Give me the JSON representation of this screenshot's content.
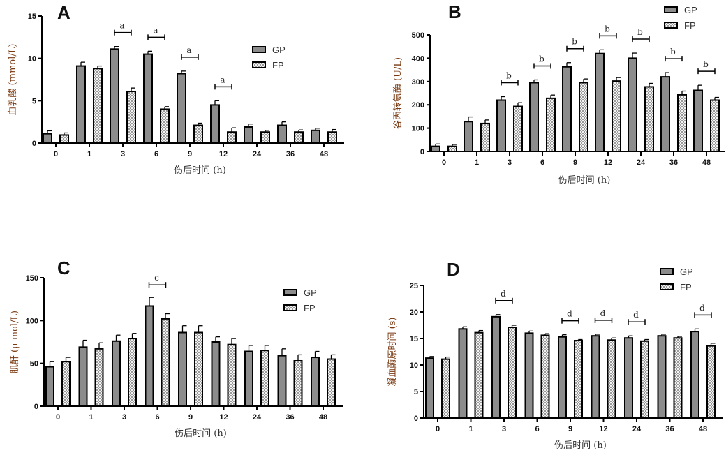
{
  "chart_data": [
    {
      "type": "bar",
      "panel": "A",
      "ylabel": "血乳酸 (mmol/L)",
      "xlabel": "伤后时间 (h)",
      "categories": [
        "0",
        "1",
        "3",
        "6",
        "9",
        "12",
        "24",
        "36",
        "48"
      ],
      "ylim": [
        0,
        15
      ],
      "yticks": [
        0,
        5,
        10,
        15
      ],
      "series": [
        {
          "name": "GP",
          "values": [
            1.1,
            9.1,
            11.1,
            10.5,
            8.2,
            4.5,
            1.9,
            2.1,
            1.5
          ],
          "errors": [
            0.35,
            0.45,
            0.3,
            0.35,
            0.3,
            0.5,
            0.35,
            0.4,
            0.25
          ]
        },
        {
          "name": "FP",
          "values": [
            0.95,
            8.8,
            6.1,
            4.0,
            2.1,
            1.3,
            1.3,
            1.3,
            1.3
          ],
          "errors": [
            0.25,
            0.3,
            0.4,
            0.3,
            0.25,
            0.5,
            0.2,
            0.25,
            0.3
          ]
        }
      ],
      "significance": [
        {
          "category": "3",
          "label": "a"
        },
        {
          "category": "6",
          "label": "a"
        },
        {
          "category": "9",
          "label": "a"
        },
        {
          "category": "12",
          "label": "a"
        }
      ],
      "legend": "top-right"
    },
    {
      "type": "bar",
      "panel": "B",
      "ylabel": "谷丙转氨酶 (U/L)",
      "xlabel": "伤后时间 (h)",
      "categories": [
        "0",
        "1",
        "3",
        "6",
        "9",
        "12",
        "24",
        "36",
        "48"
      ],
      "ylim": [
        0,
        500
      ],
      "yticks": [
        0,
        100,
        200,
        300,
        400,
        500
      ],
      "series": [
        {
          "name": "GP",
          "values": [
            22,
            128,
            220,
            295,
            363,
            420,
            400,
            320,
            262
          ],
          "errors": [
            10,
            20,
            15,
            12,
            18,
            16,
            22,
            18,
            22
          ]
        },
        {
          "name": "FP",
          "values": [
            22,
            120,
            193,
            228,
            295,
            302,
            277,
            243,
            220
          ],
          "errors": [
            8,
            15,
            16,
            14,
            16,
            15,
            15,
            16,
            12
          ]
        }
      ],
      "significance": [
        {
          "category": "3",
          "label": "b"
        },
        {
          "category": "6",
          "label": "b"
        },
        {
          "category": "9",
          "label": "b"
        },
        {
          "category": "12",
          "label": "b"
        },
        {
          "category": "24",
          "label": "b"
        },
        {
          "category": "36",
          "label": "b"
        },
        {
          "category": "48",
          "label": "b"
        }
      ],
      "legend": "top-right"
    },
    {
      "type": "bar",
      "panel": "C",
      "ylabel": "肌酐 (μ mol/L)",
      "xlabel": "伤后时间 (h)",
      "categories": [
        "0",
        "1",
        "3",
        "6",
        "9",
        "12",
        "24",
        "36",
        "48"
      ],
      "ylim": [
        0,
        150
      ],
      "yticks": [
        0,
        50,
        100,
        150
      ],
      "series": [
        {
          "name": "GP",
          "values": [
            46,
            69,
            76,
            117,
            86,
            75,
            64,
            59,
            57
          ],
          "errors": [
            6,
            8,
            7,
            10,
            8,
            6,
            7,
            8,
            7
          ]
        },
        {
          "name": "FP",
          "values": [
            52,
            67,
            79,
            102,
            86,
            72,
            65,
            53,
            55
          ],
          "errors": [
            5,
            7,
            6,
            6,
            8,
            7,
            6,
            7,
            5
          ]
        }
      ],
      "significance": [
        {
          "category": "6",
          "label": "c"
        }
      ],
      "legend": "top-right"
    },
    {
      "type": "bar",
      "panel": "D",
      "ylabel": "凝血酶原时间 (s)",
      "xlabel": "伤后时间 (h)",
      "categories": [
        "0",
        "1",
        "3",
        "6",
        "9",
        "12",
        "24",
        "36",
        "48"
      ],
      "ylim": [
        0,
        25
      ],
      "yticks": [
        0,
        5,
        10,
        15,
        20,
        25
      ],
      "series": [
        {
          "name": "GP",
          "values": [
            11.3,
            16.8,
            19.1,
            16.0,
            15.3,
            15.5,
            15.1,
            15.5,
            16.3
          ],
          "errors": [
            0.3,
            0.4,
            0.4,
            0.4,
            0.4,
            0.3,
            0.4,
            0.3,
            0.5
          ]
        },
        {
          "name": "FP",
          "values": [
            11.1,
            16.1,
            17.1,
            15.6,
            14.6,
            14.7,
            14.5,
            15.1,
            13.6
          ],
          "errors": [
            0.4,
            0.4,
            0.4,
            0.3,
            0.2,
            0.4,
            0.3,
            0.3,
            0.5
          ]
        }
      ],
      "significance": [
        {
          "category": "3",
          "label": "d"
        },
        {
          "category": "9",
          "label": "d"
        },
        {
          "category": "12",
          "label": "d"
        },
        {
          "category": "24",
          "label": "d"
        },
        {
          "category": "48",
          "label": "d"
        }
      ],
      "legend": "top-right"
    }
  ],
  "colors": {
    "gp": "#8c8c8c",
    "fp_light": "#f2f2f2",
    "fp_dark": "#9a9a9a",
    "axis": "#000000"
  }
}
